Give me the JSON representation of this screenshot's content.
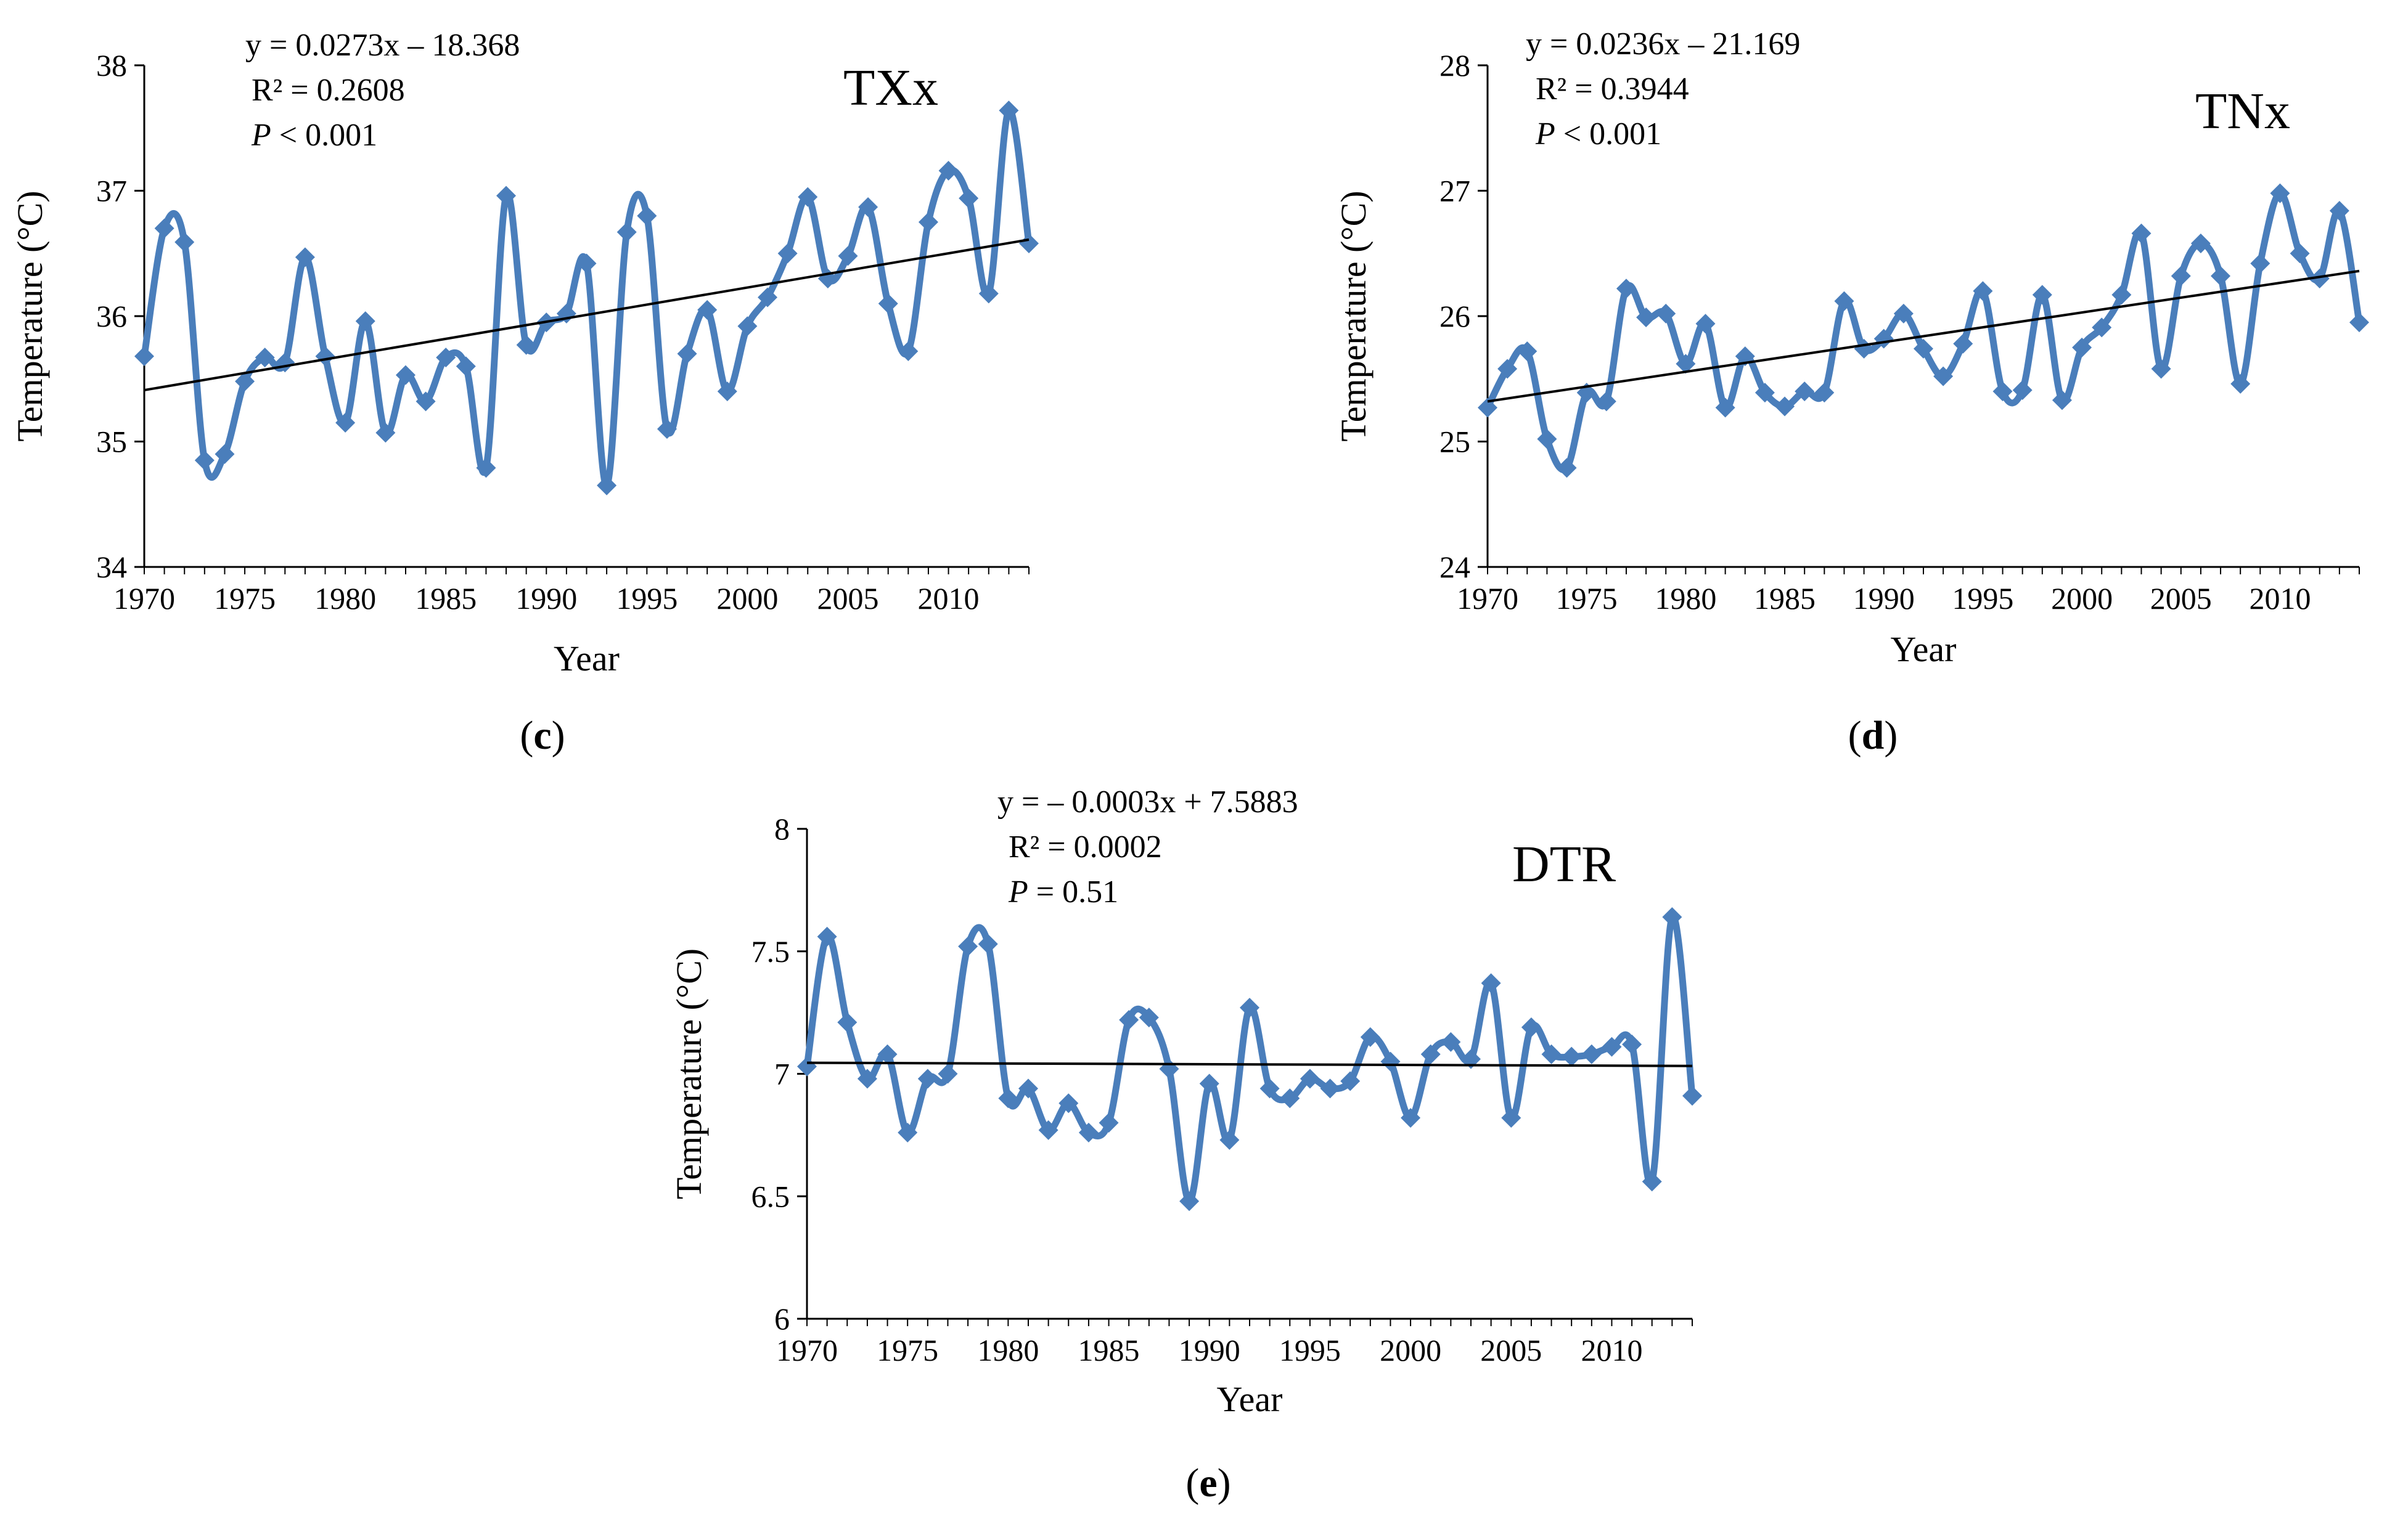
{
  "chart_data": [
    {
      "type": "line",
      "title": "TXx",
      "panel_label": "c",
      "xlabel": "Year",
      "ylabel": "Temperature  (°C)",
      "xlim": [
        1970,
        2014
      ],
      "ylim": [
        34,
        38
      ],
      "x_ticks": [
        1970,
        1975,
        1980,
        1985,
        1990,
        1995,
        2000,
        2005,
        2010
      ],
      "y_ticks": [
        34,
        35,
        36,
        37,
        38
      ],
      "series_color": "#4a7ebb",
      "trend_color": "#000000",
      "equation": "y = 0.0273x – 18.368",
      "r2": "R² = 0.2608",
      "p_value": {
        "label": "P",
        "text": " < 0.001"
      },
      "trend": {
        "x": [
          1970,
          2014
        ],
        "y": [
          35.41,
          36.61
        ]
      },
      "x": [
        1970,
        1971,
        1972,
        1973,
        1974,
        1975,
        1976,
        1977,
        1978,
        1979,
        1980,
        1981,
        1982,
        1983,
        1984,
        1985,
        1986,
        1987,
        1988,
        1989,
        1990,
        1991,
        1992,
        1993,
        1994,
        1995,
        1996,
        1997,
        1998,
        1999,
        2000,
        2001,
        2002,
        2003,
        2004,
        2005,
        2006,
        2007,
        2008,
        2009,
        2010,
        2011,
        2012,
        2013,
        2014
      ],
      "y": [
        35.68,
        36.7,
        36.59,
        34.85,
        34.9,
        35.48,
        35.67,
        35.63,
        36.47,
        35.68,
        35.15,
        35.96,
        35.07,
        35.53,
        35.32,
        35.67,
        35.6,
        34.79,
        36.96,
        35.77,
        35.95,
        36.02,
        36.42,
        34.65,
        36.67,
        36.8,
        35.1,
        35.7,
        36.05,
        35.4,
        35.92,
        36.15,
        36.5,
        36.95,
        36.3,
        36.48,
        36.87,
        36.1,
        35.72,
        36.75,
        37.16,
        36.94,
        36.18,
        37.64,
        36.58
      ]
    },
    {
      "type": "line",
      "title": "TNx",
      "panel_label": "d",
      "xlabel": "Year",
      "ylabel": "Temperature  (°C)",
      "xlim": [
        1970,
        2014
      ],
      "ylim": [
        24,
        28
      ],
      "x_ticks": [
        1970,
        1975,
        1980,
        1985,
        1990,
        1995,
        2000,
        2005,
        2010
      ],
      "y_ticks": [
        24,
        25,
        26,
        27,
        28
      ],
      "series_color": "#4a7ebb",
      "trend_color": "#000000",
      "equation": "y = 0.0236x – 21.169",
      "r2": "R² = 0.3944",
      "p_value": {
        "label": "P",
        "text": " < 0.001"
      },
      "trend": {
        "x": [
          1970,
          2014
        ],
        "y": [
          25.32,
          26.36
        ]
      },
      "x": [
        1970,
        1971,
        1972,
        1973,
        1974,
        1975,
        1976,
        1977,
        1978,
        1979,
        1980,
        1981,
        1982,
        1983,
        1984,
        1985,
        1986,
        1987,
        1988,
        1989,
        1990,
        1991,
        1992,
        1993,
        1994,
        1995,
        1996,
        1997,
        1998,
        1999,
        2000,
        2001,
        2002,
        2003,
        2004,
        2005,
        2006,
        2007,
        2008,
        2009,
        2010,
        2011,
        2012,
        2013,
        2014
      ],
      "y": [
        25.27,
        25.58,
        25.72,
        25.02,
        24.79,
        25.39,
        25.32,
        26.22,
        25.99,
        26.02,
        25.62,
        25.94,
        25.27,
        25.68,
        25.39,
        25.28,
        25.4,
        25.39,
        26.12,
        25.74,
        25.82,
        26.02,
        25.74,
        25.52,
        25.78,
        26.2,
        25.4,
        25.41,
        26.17,
        25.33,
        25.75,
        25.91,
        26.17,
        26.66,
        25.58,
        26.32,
        26.58,
        26.32,
        25.46,
        26.42,
        26.98,
        26.5,
        26.3,
        26.84,
        25.95
      ]
    },
    {
      "type": "line",
      "title": "DTR",
      "panel_label": "e",
      "xlabel": "Year",
      "ylabel": "Temperature  (°C)",
      "xlim": [
        1970,
        2014
      ],
      "ylim": [
        6,
        8
      ],
      "x_ticks": [
        1970,
        1975,
        1980,
        1985,
        1990,
        1995,
        2000,
        2005,
        2010
      ],
      "y_ticks": [
        6,
        6.5,
        7,
        7.5,
        8
      ],
      "series_color": "#4a7ebb",
      "trend_color": "#000000",
      "equation": "y = – 0.0003x + 7.5883",
      "r2": "R² = 0.0002",
      "p_value": {
        "label": "P",
        "text": " = 0.51"
      },
      "trend": {
        "x": [
          1970,
          2014
        ],
        "y": [
          7.045,
          7.032
        ]
      },
      "x": [
        1970,
        1971,
        1972,
        1973,
        1974,
        1975,
        1976,
        1977,
        1978,
        1979,
        1980,
        1981,
        1982,
        1983,
        1984,
        1985,
        1986,
        1987,
        1988,
        1989,
        1990,
        1991,
        1992,
        1993,
        1994,
        1995,
        1996,
        1997,
        1998,
        1999,
        2000,
        2001,
        2002,
        2003,
        2004,
        2005,
        2006,
        2007,
        2008,
        2009,
        2010,
        2011,
        2012,
        2013,
        2014
      ],
      "y": [
        7.03,
        7.56,
        7.21,
        6.98,
        7.08,
        6.76,
        6.98,
        7.0,
        7.52,
        7.53,
        6.9,
        6.94,
        6.77,
        6.88,
        6.76,
        6.8,
        7.22,
        7.23,
        7.02,
        6.48,
        6.96,
        6.73,
        7.27,
        6.94,
        6.9,
        6.98,
        6.94,
        6.97,
        7.15,
        7.05,
        6.82,
        7.08,
        7.13,
        7.06,
        7.37,
        6.82,
        7.19,
        7.08,
        7.07,
        7.08,
        7.11,
        7.12,
        6.56,
        7.64,
        6.91
      ]
    }
  ]
}
